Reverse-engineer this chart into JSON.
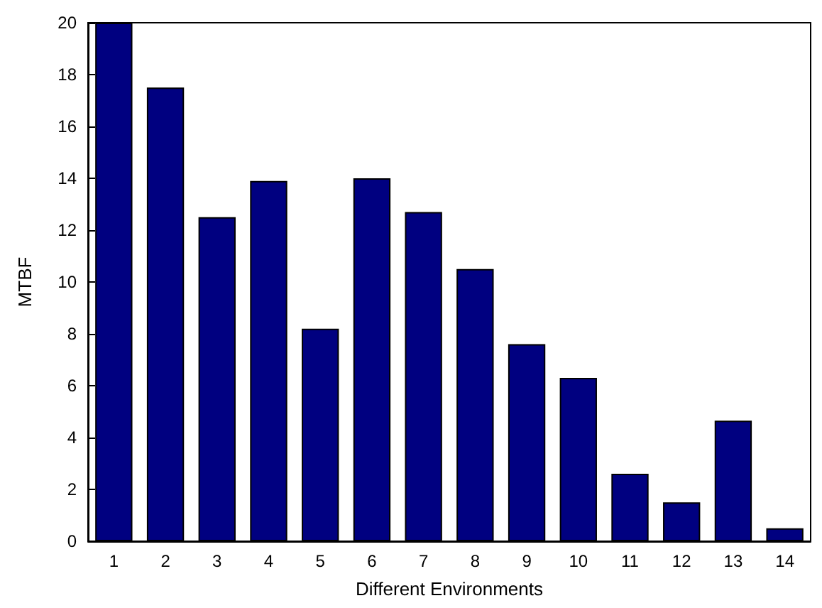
{
  "chart_data": {
    "type": "bar",
    "xlabel": "Different Environments",
    "ylabel": "MTBF",
    "categories": [
      "1",
      "2",
      "3",
      "4",
      "5",
      "6",
      "7",
      "8",
      "9",
      "10",
      "11",
      "12",
      "13",
      "14"
    ],
    "values": [
      20,
      17.5,
      12.5,
      13.9,
      8.2,
      14,
      12.7,
      10.5,
      7.6,
      6.3,
      2.6,
      1.5,
      4.65,
      0.5
    ],
    "color": "#000080",
    "ylim": [
      0,
      20
    ],
    "yticks": [
      0,
      2,
      4,
      6,
      8,
      10,
      12,
      14,
      16,
      18,
      20
    ],
    "grid": false
  }
}
